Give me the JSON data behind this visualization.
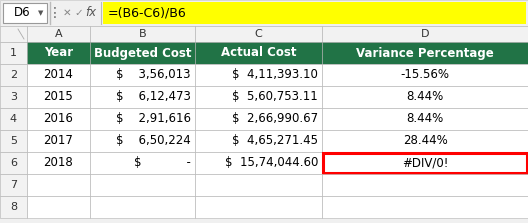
{
  "formula_bar_cell": "D6",
  "formula_bar_formula": "=(B6-C6)/B6",
  "col_headers": [
    "A",
    "B",
    "C",
    "D"
  ],
  "header_row": [
    "Year",
    "Budgeted Cost",
    "Actual Cost",
    "Variance Percentage"
  ],
  "rows": [
    [
      "2014",
      "$    3,56,013",
      "$  4,11,393.10",
      "-15.56%"
    ],
    [
      "2015",
      "$    6,12,473",
      "$  5,60,753.11",
      "8.44%"
    ],
    [
      "2016",
      "$    2,91,616",
      "$  2,66,990.67",
      "8.44%"
    ],
    [
      "2017",
      "$    6,50,224",
      "$  4,65,271.45",
      "28.44%"
    ],
    [
      "2018",
      "$            -",
      "$  15,74,044.60",
      "#DIV/0!"
    ]
  ],
  "header_bg": "#217346",
  "header_fg": "#ffffff",
  "cell_bg": "#ffffff",
  "cell_fg": "#000000",
  "grid_color": "#b0b0b0",
  "formula_bg": "#ffff00",
  "formula_fg": "#000000",
  "toolbar_bg": "#f0f0f0",
  "div0_border": "#ff0000",
  "col_header_bg": "#f2f2f2"
}
